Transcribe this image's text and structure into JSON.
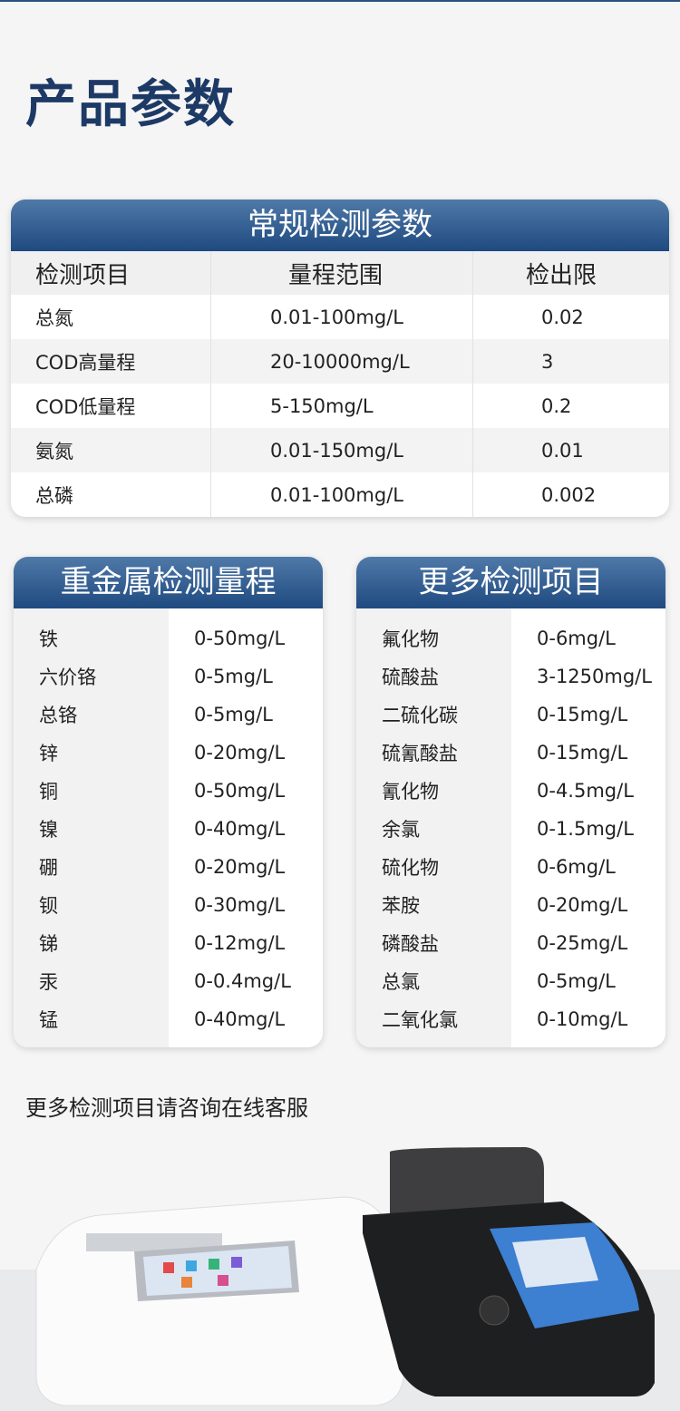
{
  "page_title": "产品参数",
  "regular": {
    "title": "常规检测参数",
    "headers": [
      "检测项目",
      "量程范围",
      "检出限"
    ],
    "rows": [
      [
        "总氮",
        "0.01-100mg/L",
        "0.02"
      ],
      [
        "COD高量程",
        "20-10000mg/L",
        "3"
      ],
      [
        "COD低量程",
        "5-150mg/L",
        "0.2"
      ],
      [
        "氨氮",
        "0.01-150mg/L",
        "0.01"
      ],
      [
        "总磷",
        "0.01-100mg/L",
        "0.002"
      ]
    ]
  },
  "heavy_metals": {
    "title": "重金属检测量程",
    "rows": [
      [
        "铁",
        "0-50mg/L"
      ],
      [
        "六价铬",
        "0-5mg/L"
      ],
      [
        "总铬",
        "0-5mg/L"
      ],
      [
        "锌",
        "0-20mg/L"
      ],
      [
        "铜",
        "0-50mg/L"
      ],
      [
        "镍",
        "0-40mg/L"
      ],
      [
        "硼",
        "0-20mg/L"
      ],
      [
        "钡",
        "0-30mg/L"
      ],
      [
        "锑",
        "0-12mg/L"
      ],
      [
        "汞",
        "0-0.4mg/L"
      ],
      [
        "锰",
        "0-40mg/L"
      ]
    ]
  },
  "more_items": {
    "title": "更多检测项目",
    "rows": [
      [
        "氟化物",
        "0-6mg/L"
      ],
      [
        "硫酸盐",
        "3-1250mg/L"
      ],
      [
        "二硫化碳",
        "0-15mg/L"
      ],
      [
        "硫氰酸盐",
        "0-15mg/L"
      ],
      [
        "氰化物",
        "0-4.5mg/L"
      ],
      [
        "余氯",
        "0-1.5mg/L"
      ],
      [
        "硫化物",
        "0-6mg/L"
      ],
      [
        "苯胺",
        "0-20mg/L"
      ],
      [
        "磷酸盐",
        "0-25mg/L"
      ],
      [
        "总氯",
        "0-5mg/L"
      ],
      [
        "二氧化氯",
        "0-10mg/L"
      ]
    ]
  },
  "footer_note": "更多检测项目请咨询在线客服",
  "colors": {
    "header_blue": "#1f4a80",
    "title_blue": "#1d3a66"
  }
}
